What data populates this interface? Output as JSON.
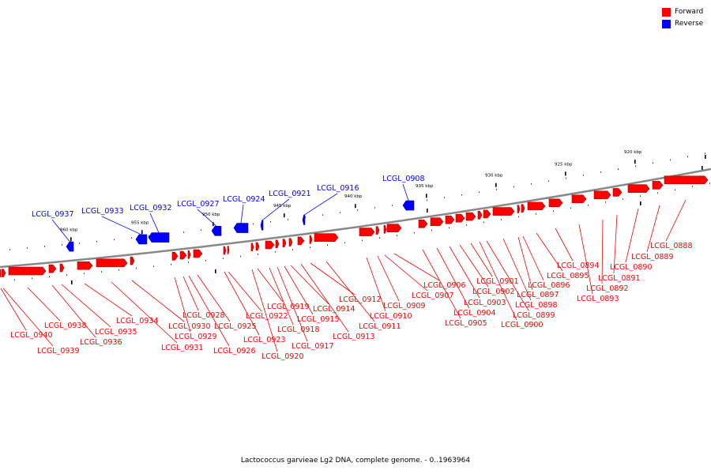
{
  "colors": {
    "forward": "#ff0000",
    "reverse": "#0000ff",
    "backbone": "#888888"
  },
  "legend": [
    {
      "label": "Forward",
      "color": "#ff0000"
    },
    {
      "label": "Reverse",
      "color": "#0000ff"
    }
  ],
  "caption": "Lactococcus garvieae Lg2 DNA, complete genome. - 0..1963964",
  "scale": [
    {
      "label": "920 kbp",
      "pos_kbp": 920
    },
    {
      "label": "925 kbp",
      "pos_kbp": 925
    },
    {
      "label": "930 kbp",
      "pos_kbp": 930
    },
    {
      "label": "935 kbp",
      "pos_kbp": 935
    },
    {
      "label": "940 kbp",
      "pos_kbp": 940
    },
    {
      "label": "945 kbp",
      "pos_kbp": 945
    },
    {
      "label": "950 kbp",
      "pos_kbp": 950
    },
    {
      "label": "955 kbp",
      "pos_kbp": 955
    },
    {
      "label": "960 kbp",
      "pos_kbp": 960
    }
  ],
  "reverse_genes": [
    {
      "name": "LCGL_0937"
    },
    {
      "name": "LCGL_0933"
    },
    {
      "name": "LCGL_0932"
    },
    {
      "name": "LCGL_0927"
    },
    {
      "name": "LCGL_0924"
    },
    {
      "name": "LCGL_0921"
    },
    {
      "name": "LCGL_0916"
    },
    {
      "name": "LCGL_0908"
    }
  ],
  "forward_genes": [
    {
      "name": "LCGL_0888"
    },
    {
      "name": "LCGL_0889"
    },
    {
      "name": "LCGL_0890"
    },
    {
      "name": "LCGL_0891"
    },
    {
      "name": "LCGL_0892"
    },
    {
      "name": "LCGL_0893"
    },
    {
      "name": "LCGL_0894"
    },
    {
      "name": "LCGL_0895"
    },
    {
      "name": "LCGL_0896"
    },
    {
      "name": "LCGL_0897"
    },
    {
      "name": "LCGL_0898"
    },
    {
      "name": "LCGL_0899"
    },
    {
      "name": "LCGL_0900"
    },
    {
      "name": "LCGL_0901"
    },
    {
      "name": "LCGL_0902"
    },
    {
      "name": "LCGL_0903"
    },
    {
      "name": "LCGL_0904"
    },
    {
      "name": "LCGL_0905"
    },
    {
      "name": "LCGL_0906"
    },
    {
      "name": "LCGL_0907"
    },
    {
      "name": "LCGL_0909"
    },
    {
      "name": "LCGL_0910"
    },
    {
      "name": "LCGL_0911"
    },
    {
      "name": "LCGL_0912"
    },
    {
      "name": "LCGL_0913"
    },
    {
      "name": "LCGL_0914"
    },
    {
      "name": "LCGL_0915"
    },
    {
      "name": "LCGL_0917"
    },
    {
      "name": "LCGL_0918"
    },
    {
      "name": "LCGL_0919"
    },
    {
      "name": "LCGL_0920"
    },
    {
      "name": "LCGL_0922"
    },
    {
      "name": "LCGL_0923"
    },
    {
      "name": "LCGL_0925"
    },
    {
      "name": "LCGL_0926"
    },
    {
      "name": "LCGL_0928"
    },
    {
      "name": "LCGL_0929"
    },
    {
      "name": "LCGL_0930"
    },
    {
      "name": "LCGL_0931"
    },
    {
      "name": "LCGL_0934"
    },
    {
      "name": "LCGL_0935"
    },
    {
      "name": "LCGL_0936"
    },
    {
      "name": "LCGL_0938"
    },
    {
      "name": "LCGL_0939"
    },
    {
      "name": "LCGL_0940"
    }
  ]
}
